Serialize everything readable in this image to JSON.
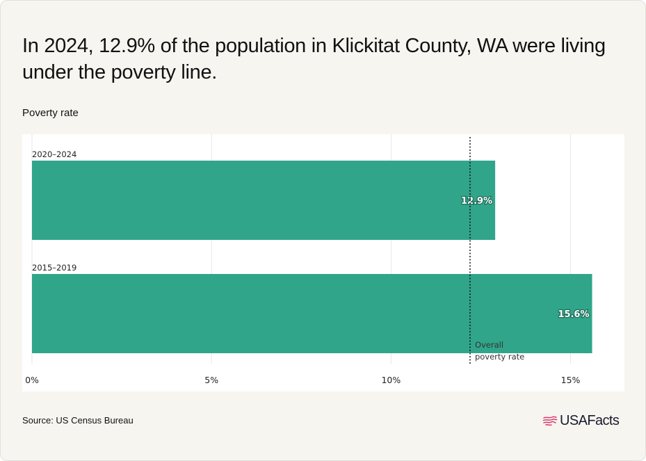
{
  "title": "In 2024, 12.9% of the population in Klickitat County, WA were living under the poverty line.",
  "subtitle": "Poverty rate",
  "source": "Source: US Census Bureau",
  "brand": {
    "name": "USAFacts",
    "logo_icon": "us-flag-map-icon",
    "logo_color": "#d9376e"
  },
  "colors": {
    "bar": "#31a589",
    "reference_line": "#111111",
    "grid": "#e6e6e6"
  },
  "chart_data": {
    "type": "bar",
    "orientation": "horizontal",
    "categories": [
      "2020–2024",
      "2015–2019"
    ],
    "values": [
      12.9,
      15.6
    ],
    "value_labels": [
      "12.9%",
      "15.6%"
    ],
    "xlim": [
      0,
      16.5
    ],
    "x_ticks": [
      0,
      5,
      10,
      15
    ],
    "x_tick_labels": [
      "0%",
      "5%",
      "10%",
      "15%"
    ],
    "grid": true,
    "reference_line": {
      "value": 12.2,
      "label_lines": [
        "Overall",
        "poverty rate"
      ],
      "style": "dotted"
    }
  }
}
